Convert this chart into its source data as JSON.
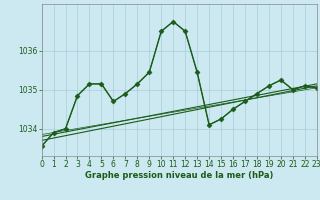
{
  "xlabel": "Graphe pression niveau de la mer (hPa)",
  "bg_color": "#cce8f0",
  "grid_color": "#aaccdd",
  "line_color": "#1a5c1a",
  "ylim": [
    1033.3,
    1037.2
  ],
  "xlim": [
    0,
    23
  ],
  "yticks": [
    1034,
    1035,
    1036
  ],
  "xticks": [
    0,
    1,
    2,
    3,
    4,
    5,
    6,
    7,
    8,
    9,
    10,
    11,
    12,
    13,
    14,
    15,
    16,
    17,
    18,
    19,
    20,
    21,
    22,
    23
  ],
  "series": [
    {
      "x": [
        0,
        1,
        2,
        3,
        4,
        5,
        6,
        7,
        8,
        9,
        10,
        11,
        12,
        13,
        14,
        15,
        16,
        17,
        18,
        19,
        20,
        21,
        22,
        23
      ],
      "y": [
        1033.55,
        1033.9,
        1034.0,
        1034.85,
        1035.15,
        1035.15,
        1034.7,
        1034.9,
        1035.15,
        1035.45,
        1036.5,
        1036.75,
        1036.5,
        1035.45,
        1034.1,
        1034.25,
        1034.5,
        1034.7,
        1034.9,
        1035.1,
        1035.25,
        1035.0,
        1035.1,
        1035.05
      ],
      "marker": "D",
      "markersize": 2.5,
      "linewidth": 1.0
    },
    {
      "x": [
        0,
        1,
        2,
        3,
        4,
        5,
        6,
        7,
        8,
        9,
        10,
        11,
        12,
        13,
        14,
        15,
        16,
        17,
        18,
        19,
        20,
        21,
        22,
        23
      ],
      "y": [
        1033.55,
        1033.9,
        1034.0,
        1034.85,
        1035.15,
        1035.15,
        1034.7,
        1034.9,
        1035.15,
        1035.45,
        1036.5,
        1036.75,
        1036.5,
        1035.45,
        1034.1,
        1034.25,
        1034.5,
        1034.7,
        1034.9,
        1035.1,
        1035.25,
        1035.0,
        1035.1,
        1035.05
      ],
      "marker": null,
      "markersize": 0,
      "linewidth": 0.6
    },
    {
      "x": [
        0,
        23
      ],
      "y": [
        1033.7,
        1035.1
      ],
      "marker": null,
      "markersize": 0,
      "linewidth": 0.8
    },
    {
      "x": [
        0,
        23
      ],
      "y": [
        1033.8,
        1035.15
      ],
      "marker": null,
      "markersize": 0,
      "linewidth": 0.8
    },
    {
      "x": [
        0,
        23
      ],
      "y": [
        1033.85,
        1035.05
      ],
      "marker": null,
      "markersize": 0,
      "linewidth": 0.5
    }
  ]
}
